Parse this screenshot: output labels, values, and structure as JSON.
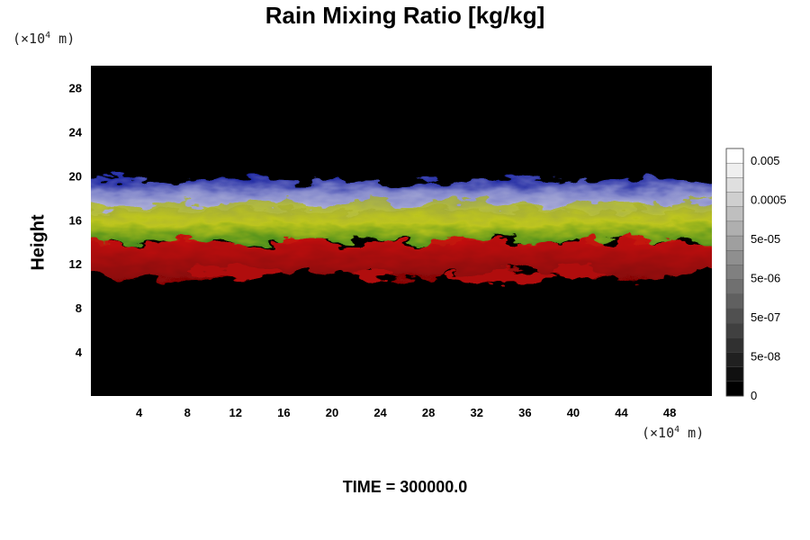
{
  "chart_data": {
    "type": "heatmap",
    "title": "Rain Mixing Ratio [kg/kg]",
    "ylabel": "Height",
    "y_unit": {
      "prefix": "(×10",
      "exp": "4",
      "suffix": " m)"
    },
    "x_unit": {
      "prefix": "(×10",
      "exp": "4",
      "suffix": " m)"
    },
    "x_ticks": [
      "4",
      "8",
      "12",
      "16",
      "20",
      "24",
      "28",
      "32",
      "36",
      "40",
      "44",
      "48"
    ],
    "y_ticks": [
      "4",
      "8",
      "12",
      "16",
      "20",
      "24",
      "28"
    ],
    "xlim": [
      0,
      51.5
    ],
    "ylim": [
      0,
      30
    ],
    "layers": [
      {
        "color": "blue-white",
        "y_range": [
          16.5,
          20
        ]
      },
      {
        "color": "yellow-green",
        "y_range": [
          13.5,
          18
        ]
      },
      {
        "color": "red",
        "y_range": [
          10.3,
          14.5
        ]
      }
    ],
    "colorbar": {
      "labels": [
        "0.005",
        "0.0005",
        "5e-05",
        "5e-06",
        "5e-07",
        "5e-08",
        "0"
      ],
      "levels": 17
    },
    "footer": "TIME = 300000.0"
  }
}
